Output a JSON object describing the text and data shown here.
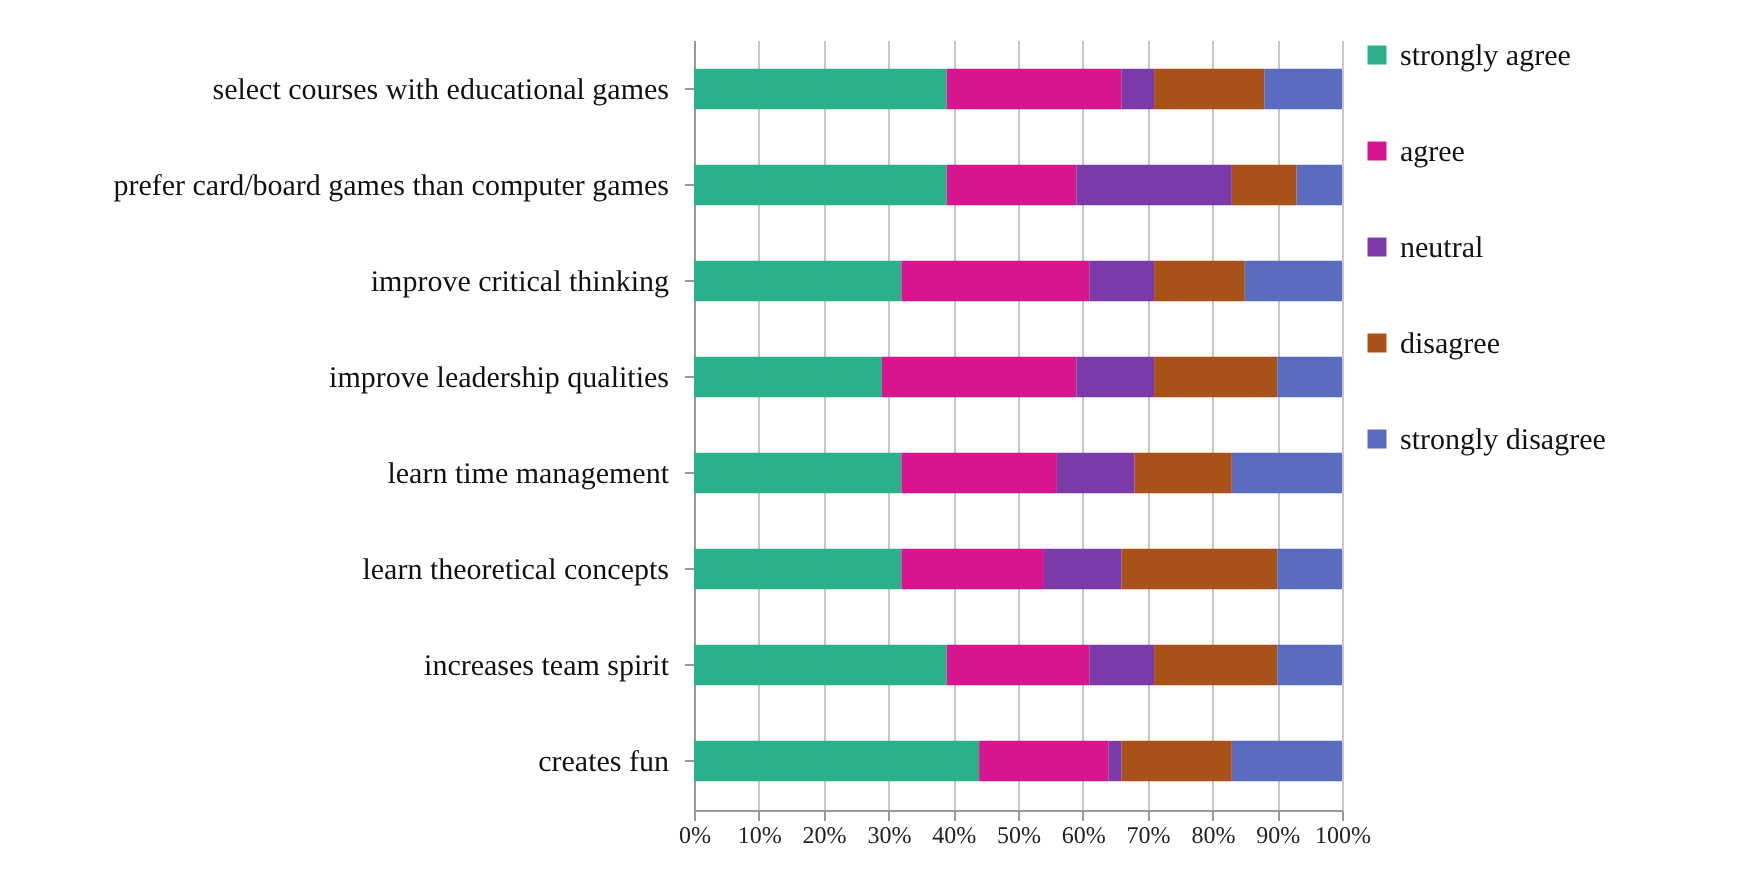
{
  "chart_data": {
    "type": "bar",
    "orientation": "horizontal",
    "stacked": true,
    "categories": [
      "select courses with educational games",
      "prefer card/board games than computer games",
      "improve critical thinking",
      "improve leadership qualities",
      "learn time management",
      "learn theoretical concepts",
      "increases team spirit",
      "creates fun"
    ],
    "series": [
      {
        "name": "strongly agree",
        "color": "#2bb08b",
        "values": [
          39,
          39,
          32,
          29,
          32,
          32,
          39,
          44
        ]
      },
      {
        "name": "agree",
        "color": "#d6158f",
        "values": [
          27,
          20,
          29,
          30,
          24,
          22,
          22,
          20
        ]
      },
      {
        "name": "neutral",
        "color": "#7a3aa8",
        "values": [
          5,
          24,
          10,
          12,
          12,
          12,
          10,
          2
        ]
      },
      {
        "name": "disagree",
        "color": "#a8521a",
        "values": [
          17,
          10,
          14,
          19,
          15,
          24,
          19,
          17
        ]
      },
      {
        "name": "strongly disagree",
        "color": "#5b6cc0",
        "values": [
          12,
          7,
          15,
          10,
          17,
          10,
          10,
          17
        ]
      }
    ],
    "xlim": [
      0,
      100
    ],
    "xticks": [
      {
        "value": 0,
        "label": "0%"
      },
      {
        "value": 10,
        "label": "10%"
      },
      {
        "value": 20,
        "label": "20%"
      },
      {
        "value": 30,
        "label": "30%"
      },
      {
        "value": 40,
        "label": "40%"
      },
      {
        "value": 50,
        "label": "50%"
      },
      {
        "value": 60,
        "label": "60%"
      },
      {
        "value": 70,
        "label": "70%"
      },
      {
        "value": 80,
        "label": "80%"
      },
      {
        "value": 90,
        "label": "90%"
      },
      {
        "value": 100,
        "label": "100%"
      }
    ],
    "grid": "x",
    "legend": "right"
  }
}
